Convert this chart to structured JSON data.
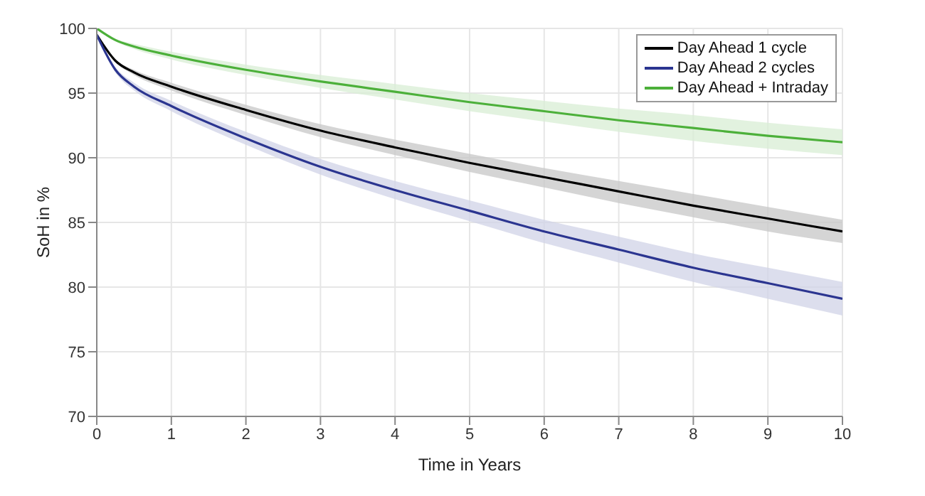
{
  "chart_data": {
    "type": "line",
    "xlabel": "Time in Years",
    "ylabel": "SoH in %",
    "x": [
      0,
      0.25,
      0.5,
      1,
      2,
      3,
      4,
      5,
      6,
      7,
      8,
      9,
      10
    ],
    "series": [
      {
        "name": "Day Ahead 1 cycle",
        "color": "#000000",
        "values": [
          99.5,
          97.5,
          96.6,
          95.5,
          93.7,
          92.1,
          90.8,
          89.6,
          88.5,
          87.4,
          86.3,
          85.3,
          84.3
        ],
        "lower": [
          99.5,
          97.4,
          96.4,
          95.2,
          93.3,
          91.6,
          90.2,
          88.9,
          87.7,
          86.5,
          85.4,
          84.3,
          83.4
        ],
        "upper": [
          99.5,
          97.6,
          96.8,
          95.8,
          94.1,
          92.6,
          91.4,
          90.3,
          89.2,
          88.2,
          87.2,
          86.2,
          85.2
        ]
      },
      {
        "name": "Day Ahead 2 cycles",
        "color": "#2b3590",
        "values": [
          99.5,
          96.8,
          95.5,
          94.0,
          91.5,
          89.3,
          87.5,
          85.9,
          84.3,
          82.9,
          81.5,
          80.3,
          79.1
        ],
        "lower": [
          99.5,
          96.6,
          95.2,
          93.6,
          91.0,
          88.7,
          86.8,
          85.1,
          83.4,
          81.9,
          80.4,
          79.1,
          77.8
        ],
        "upper": [
          99.5,
          97.0,
          95.8,
          94.4,
          92.0,
          89.9,
          88.2,
          86.7,
          85.2,
          83.9,
          82.6,
          81.5,
          80.4
        ]
      },
      {
        "name": "Day Ahead + Intraday",
        "color": "#4cb03a",
        "values": [
          100,
          99.1,
          98.6,
          97.9,
          96.8,
          95.9,
          95.1,
          94.3,
          93.6,
          92.9,
          92.3,
          91.7,
          91.2
        ],
        "lower": [
          100,
          99.0,
          98.4,
          97.6,
          96.4,
          95.4,
          94.5,
          93.6,
          92.8,
          92.0,
          91.3,
          90.7,
          90.2
        ],
        "upper": [
          100,
          99.2,
          98.8,
          98.2,
          97.2,
          96.4,
          95.7,
          95.0,
          94.4,
          93.8,
          93.3,
          92.7,
          92.2
        ]
      }
    ],
    "xlim": [
      0,
      10
    ],
    "xticks": [
      0,
      1,
      2,
      3,
      4,
      5,
      6,
      7,
      8,
      9,
      10
    ],
    "ylim": [
      70,
      100
    ],
    "yticks": [
      70,
      75,
      80,
      85,
      90,
      95,
      100
    ],
    "grid": true,
    "legend": "top right",
    "marker": "none",
    "line_style": "solid"
  }
}
